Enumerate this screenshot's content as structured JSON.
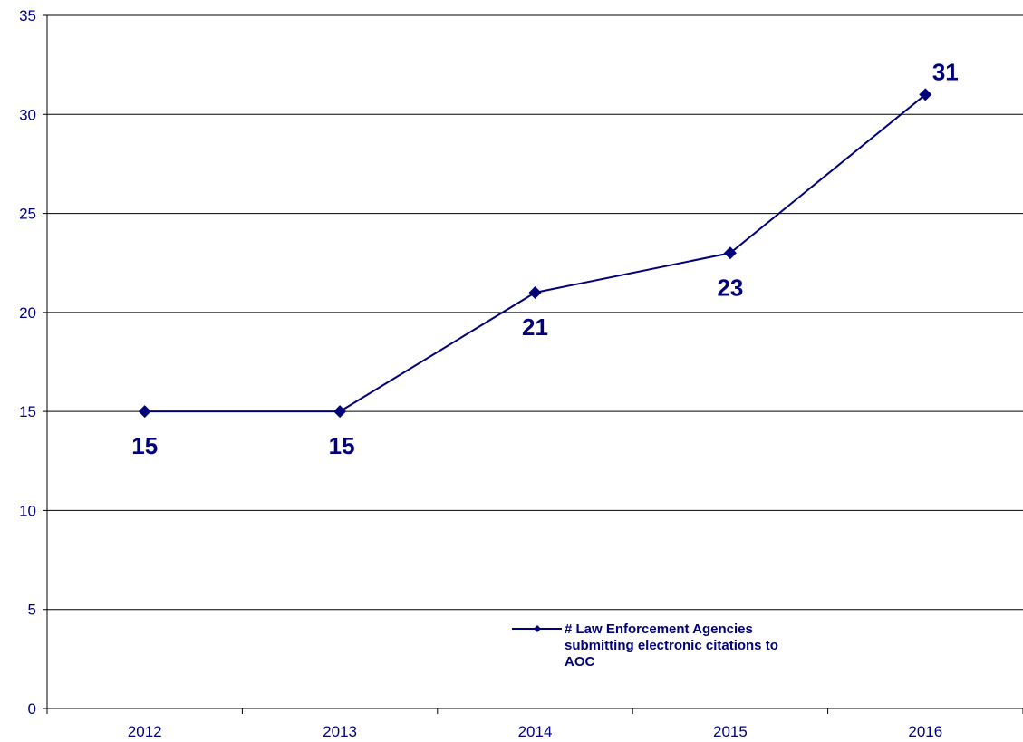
{
  "chart_data": {
    "type": "line",
    "categories": [
      "2012",
      "2013",
      "2014",
      "2015",
      "2016"
    ],
    "series": [
      {
        "name": "# Law Enforcement Agencies submitting electronic citations to AOC",
        "values": [
          15,
          15,
          21,
          23,
          31
        ]
      }
    ],
    "data_labels": [
      "15",
      "15",
      "21",
      "23",
      "31"
    ],
    "y_ticks": [
      "0",
      "5",
      "10",
      "15",
      "20",
      "25",
      "30",
      "35"
    ],
    "ylim": [
      0,
      35
    ],
    "grid": "horizontal",
    "legend_position": "bottom-center",
    "legend_lines": [
      "# Law Enforcement Agencies",
      "submitting electronic citations to",
      "AOC"
    ],
    "colors": {
      "series": "#00007a",
      "grid": "#000000",
      "text": "#00007a"
    }
  }
}
